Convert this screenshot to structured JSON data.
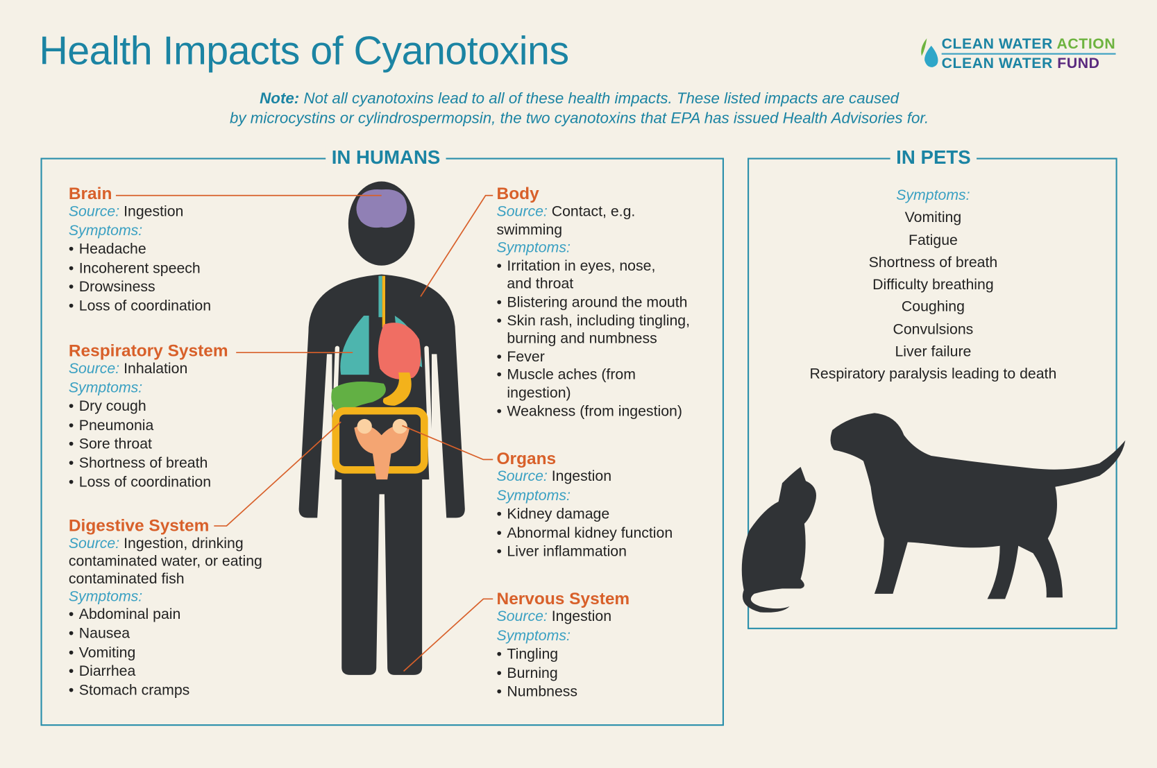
{
  "title": "Health Impacts of Cyanotoxins",
  "logo": {
    "line1_a": "CLEAN WATER",
    "line1_b": "ACTION",
    "line2_a": "CLEAN WATER",
    "line2_b": "FUND",
    "icon": "water-drop-leaf-icon"
  },
  "note": {
    "label": "Note:",
    "line1": "Not all cyanotoxins lead to all of these health impacts. These listed impacts are caused",
    "line2": "by microcystins or cylindrospermopsin, the two cyanotoxins that EPA has issued Health Advisories for."
  },
  "humans": {
    "heading": "IN HUMANS",
    "source_label": "Source:",
    "symptoms_label": "Symptoms:",
    "sections": {
      "brain": {
        "name": "Brain",
        "source": "Ingestion",
        "symptoms": [
          "Headache",
          "Incoherent speech",
          "Drowsiness",
          "Loss of coordination"
        ]
      },
      "respiratory": {
        "name": "Respiratory System",
        "source": "Inhalation",
        "symptoms": [
          "Dry cough",
          "Pneumonia",
          "Sore throat",
          "Shortness of breath",
          "Loss of coordination"
        ]
      },
      "digestive": {
        "name": "Digestive System",
        "source_lines": [
          "Ingestion, drinking",
          "contaminated water, or eating",
          "contaminated fish"
        ],
        "symptoms": [
          "Abdominal pain",
          "Nausea",
          "Vomiting",
          "Diarrhea",
          "Stomach cramps"
        ]
      },
      "body": {
        "name": "Body",
        "source_lines": [
          "Contact, e.g.",
          "swimming"
        ],
        "symptoms": [
          [
            "Irritation in eyes, nose,",
            "and throat"
          ],
          [
            "Blistering around the mouth"
          ],
          [
            "Skin rash, including tingling,",
            "burning and numbness"
          ],
          [
            "Fever"
          ],
          [
            "Muscle aches (from",
            "ingestion)"
          ],
          [
            "Weakness (from ingestion)"
          ]
        ]
      },
      "organs": {
        "name": "Organs",
        "source": "Ingestion",
        "symptoms": [
          "Kidney damage",
          "Abnormal kidney function",
          "Liver inflammation"
        ]
      },
      "nervous": {
        "name": "Nervous System",
        "source": "Ingestion",
        "symptoms": [
          "Tingling",
          "Burning",
          "Numbness"
        ]
      }
    }
  },
  "pets": {
    "heading": "IN PETS",
    "symptoms_label": "Symptoms:",
    "symptoms": [
      "Vomiting",
      "Fatigue",
      "Shortness of breath",
      "Difficulty breathing",
      "Coughing",
      "Convulsions",
      "Liver failure",
      "Respiratory paralysis leading to death"
    ]
  },
  "colors": {
    "background": "#f5f1e7",
    "title": "#1b84a3",
    "heading_orange": "#d8602a",
    "label_blue": "#3aa0c2",
    "silhouette": "#303336"
  }
}
